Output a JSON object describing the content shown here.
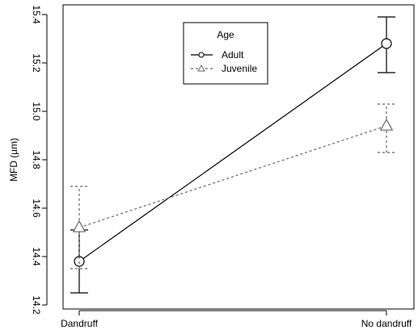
{
  "chart_data": {
    "type": "line",
    "xlabel": "",
    "ylabel": "MFD (µm)",
    "categories": [
      "Dandruff",
      "No dandruff"
    ],
    "ylim": [
      14.2,
      15.4
    ],
    "yticks": [
      14.2,
      14.4,
      14.6,
      14.8,
      15.0,
      15.2,
      15.4
    ],
    "ytick_labels": [
      "14.2",
      "14.4",
      "14.6",
      "14.8",
      "15.0",
      "15.2",
      "15.4"
    ],
    "grid": false,
    "legend": {
      "title": "Age",
      "position": "top-center"
    },
    "series": [
      {
        "name": "Adult",
        "values": [
          14.38,
          15.28
        ],
        "error": [
          {
            "low": 14.25,
            "high": 14.51
          },
          {
            "low": 15.16,
            "high": 15.39
          }
        ],
        "marker": "circle",
        "line_style": "solid",
        "color": "#000000"
      },
      {
        "name": "Juvenile",
        "values": [
          14.52,
          14.94
        ],
        "error": [
          {
            "low": 14.35,
            "high": 14.69
          },
          {
            "low": 14.83,
            "high": 15.03
          }
        ],
        "marker": "triangle",
        "line_style": "dashed",
        "color": "#666666"
      }
    ]
  }
}
